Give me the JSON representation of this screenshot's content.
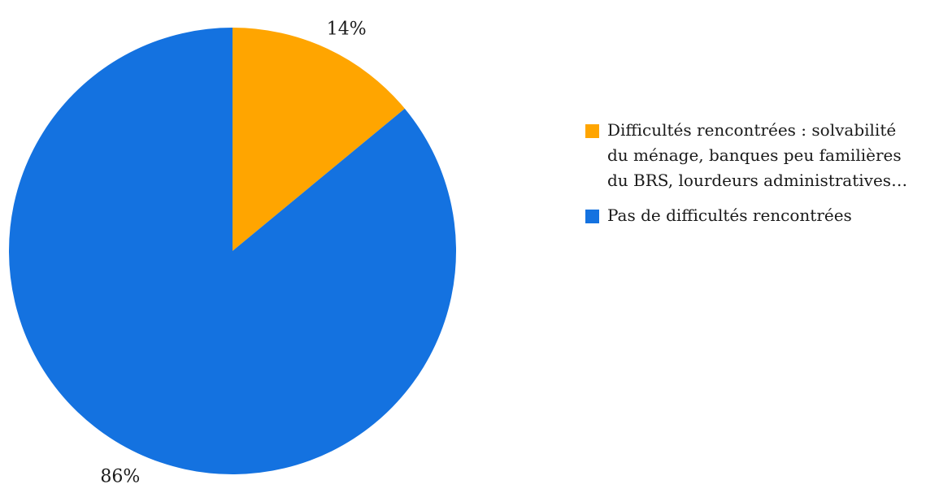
{
  "chart_data": {
    "type": "pie",
    "categories": [
      "Difficultés rencontrées : solvabilité du ménage, banques peu familières du BRS, lourdeurs administratives…",
      "Pas de difficultés rencontrées"
    ],
    "values": [
      14,
      86
    ],
    "data_labels": [
      "14%",
      "86%"
    ],
    "colors": [
      "#FFA500",
      "#1472E0"
    ],
    "title": "",
    "legend": "right"
  }
}
